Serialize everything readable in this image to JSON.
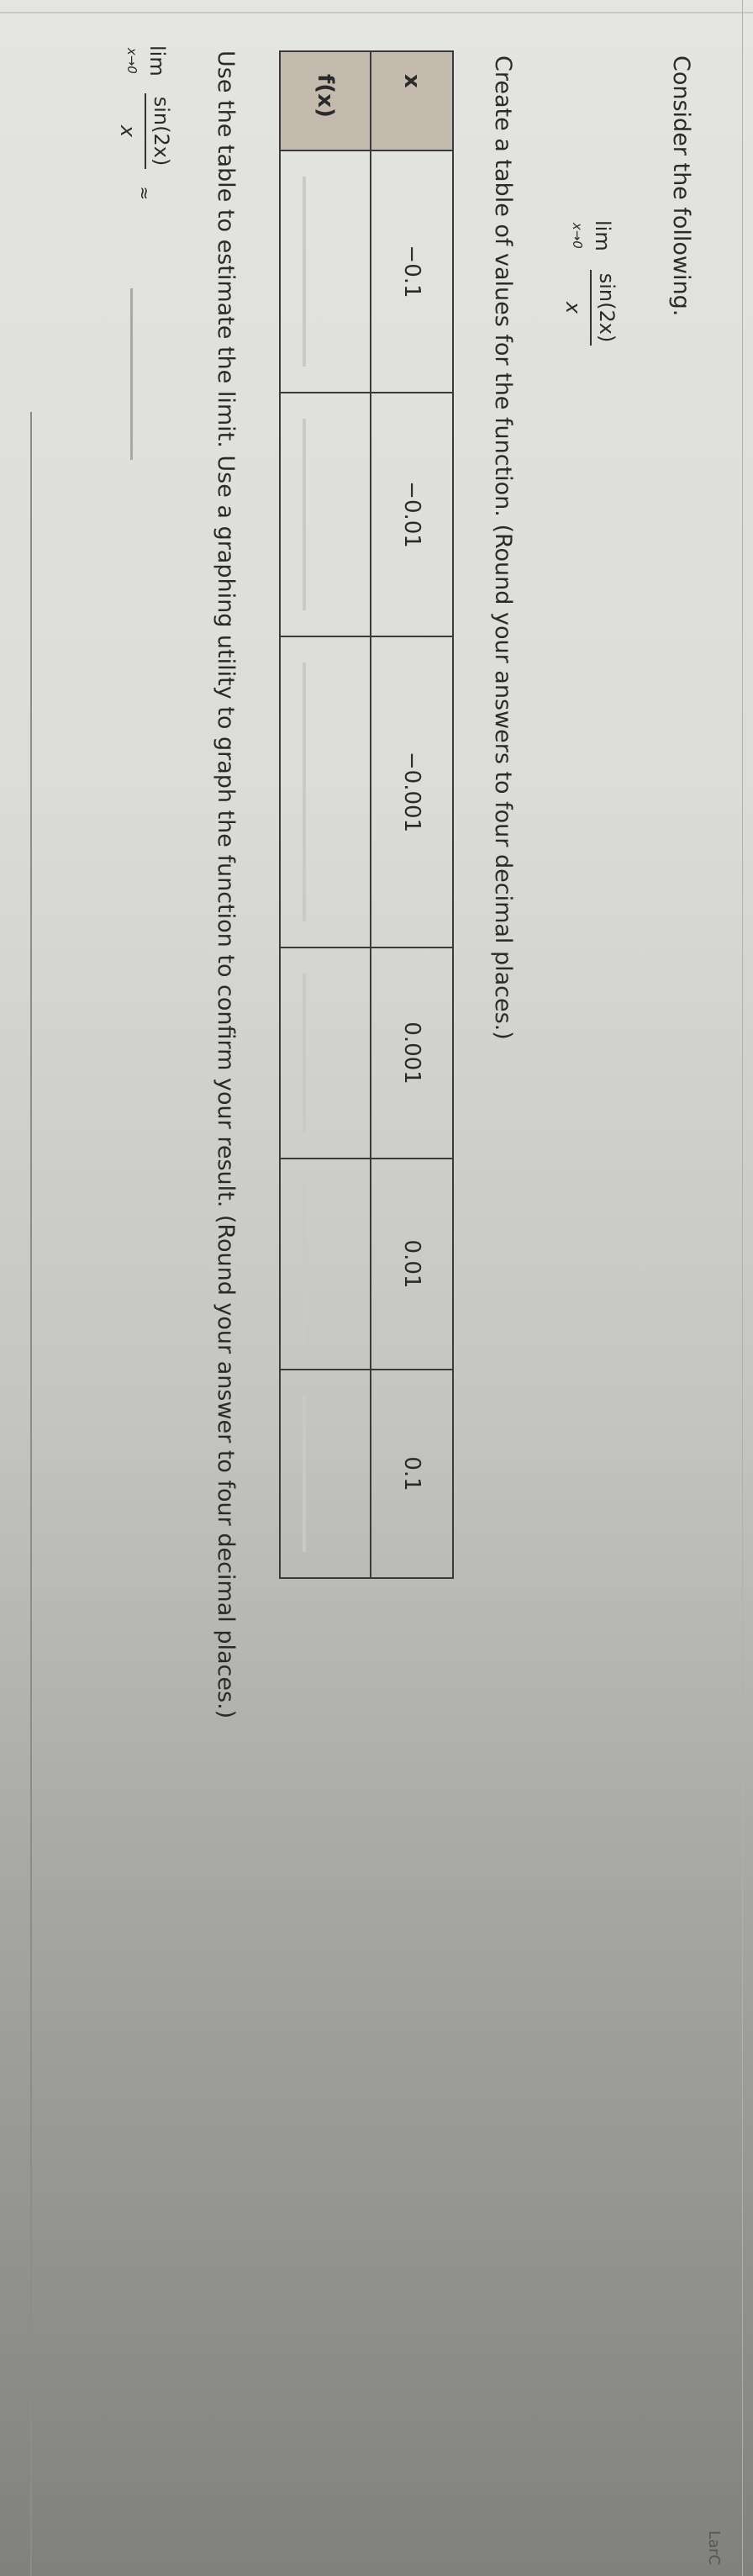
{
  "problem": {
    "intro": "Consider the following.",
    "limit": {
      "lim": "lim",
      "approach": "x→0",
      "numerator": "sin(2x)",
      "denominator": "x"
    },
    "table_instruction": "Create a table of values for the function. (Round your answers to four decimal places.)",
    "table": {
      "row_headers": [
        "x",
        "f(x)"
      ],
      "x_values": [
        "−0.1",
        "−0.01",
        "−0.001",
        "0.001",
        "0.01",
        "0.1"
      ],
      "fx_values": [
        "",
        "",
        "",
        "",
        "",
        ""
      ]
    },
    "estimate_instruction": "Use the table to estimate the limit. Use a graphing utility to graph the function to confirm your result. (Round your answer to four decimal places.)",
    "answer_limit": {
      "lim": "lim",
      "approach": "x→0",
      "numerator": "sin(2x)",
      "denominator": "x",
      "approx": "≈",
      "value": ""
    }
  },
  "footer": {
    "brand_text": "LarC"
  },
  "colors": {
    "header_cell": "#c4baae",
    "border": "#3a3a3a",
    "text": "#2a2a2a"
  }
}
